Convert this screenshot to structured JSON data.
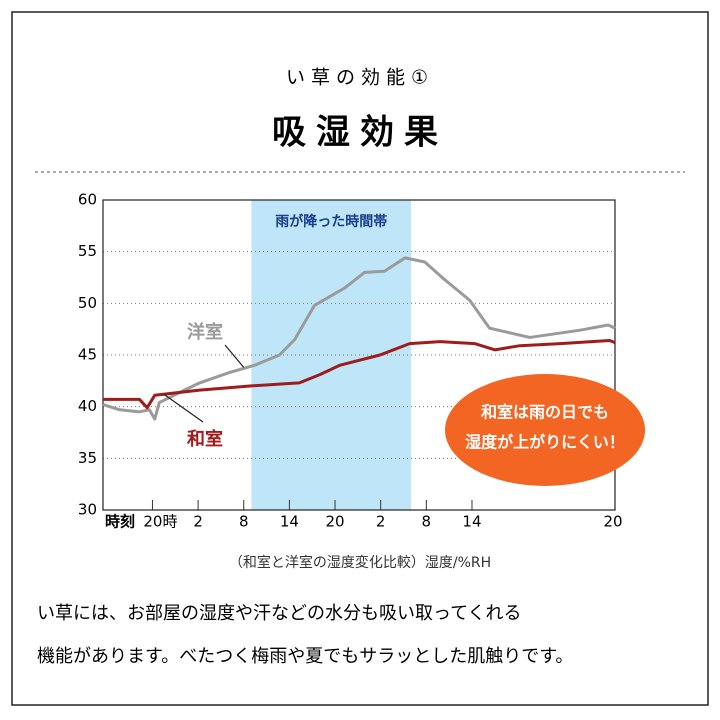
{
  "header": {
    "subtitle": "い草の効能①",
    "title": "吸湿効果"
  },
  "chart_data": {
    "type": "line",
    "xlabel": "時刻",
    "xlim": [
      -6.5,
      60.8
    ],
    "ylim": [
      30,
      60
    ],
    "yticks": [
      30,
      35,
      40,
      45,
      50,
      55,
      60
    ],
    "xticks": [
      {
        "value": 0,
        "label": "20時"
      },
      {
        "value": 6,
        "label": "2"
      },
      {
        "value": 12,
        "label": "8"
      },
      {
        "value": 18,
        "label": "14"
      },
      {
        "value": 24,
        "label": "20"
      },
      {
        "value": 30,
        "label": "2"
      },
      {
        "value": 36,
        "label": "8"
      },
      {
        "value": 42,
        "label": "14"
      },
      {
        "value": 60.8,
        "label": "20"
      }
    ],
    "grid": true,
    "highlight_band": {
      "label": "雨が降った時間帯",
      "x": [
        13,
        34
      ],
      "color": "#bfe6f8"
    },
    "series": [
      {
        "name": "洋室",
        "color": "#9a9a9a",
        "x": [
          -6.5,
          -4.3,
          -1.7,
          -0.4,
          0.3,
          0.9,
          4.2,
          6.2,
          10.1,
          13.4,
          16.7,
          18.7,
          21.3,
          25.3,
          27.9,
          30.5,
          33.2,
          35.8,
          38.4,
          41.7,
          44.3,
          49.6,
          56.2,
          59.9,
          60.8
        ],
        "values": [
          40.2,
          39.7,
          39.5,
          39.7,
          38.8,
          40.4,
          41.6,
          42.3,
          43.3,
          44.0,
          45.0,
          46.5,
          49.8,
          51.5,
          53.0,
          53.1,
          54.4,
          54.0,
          52.3,
          50.3,
          47.6,
          46.7,
          47.4,
          47.9,
          47.6
        ]
      },
      {
        "name": "和室",
        "color": "#a01c1c",
        "x": [
          -6.5,
          -1.7,
          -0.7,
          0.3,
          6.2,
          12.8,
          19.3,
          22,
          24.6,
          29.9,
          33.8,
          37.8,
          42.4,
          45,
          48.3,
          53.6,
          60.1,
          60.8
        ],
        "values": [
          40.7,
          40.7,
          39.9,
          41.1,
          41.6,
          42.0,
          42.3,
          43.1,
          44.0,
          45.0,
          46.1,
          46.3,
          46.1,
          45.5,
          45.9,
          46.1,
          46.4,
          46.2
        ]
      }
    ],
    "callout": {
      "lines": [
        "和室は雨の日でも",
        "湿度が上がりにくい！"
      ],
      "color": "#f26522"
    },
    "caption": "（和室と洋室の湿度変化比較）湿度/%RH"
  },
  "body": [
    "い草には、お部屋の湿度や汗などの水分も吸い取ってくれる",
    "機能があります。べたつく梅雨や夏でもサラッとした肌触りです。"
  ]
}
